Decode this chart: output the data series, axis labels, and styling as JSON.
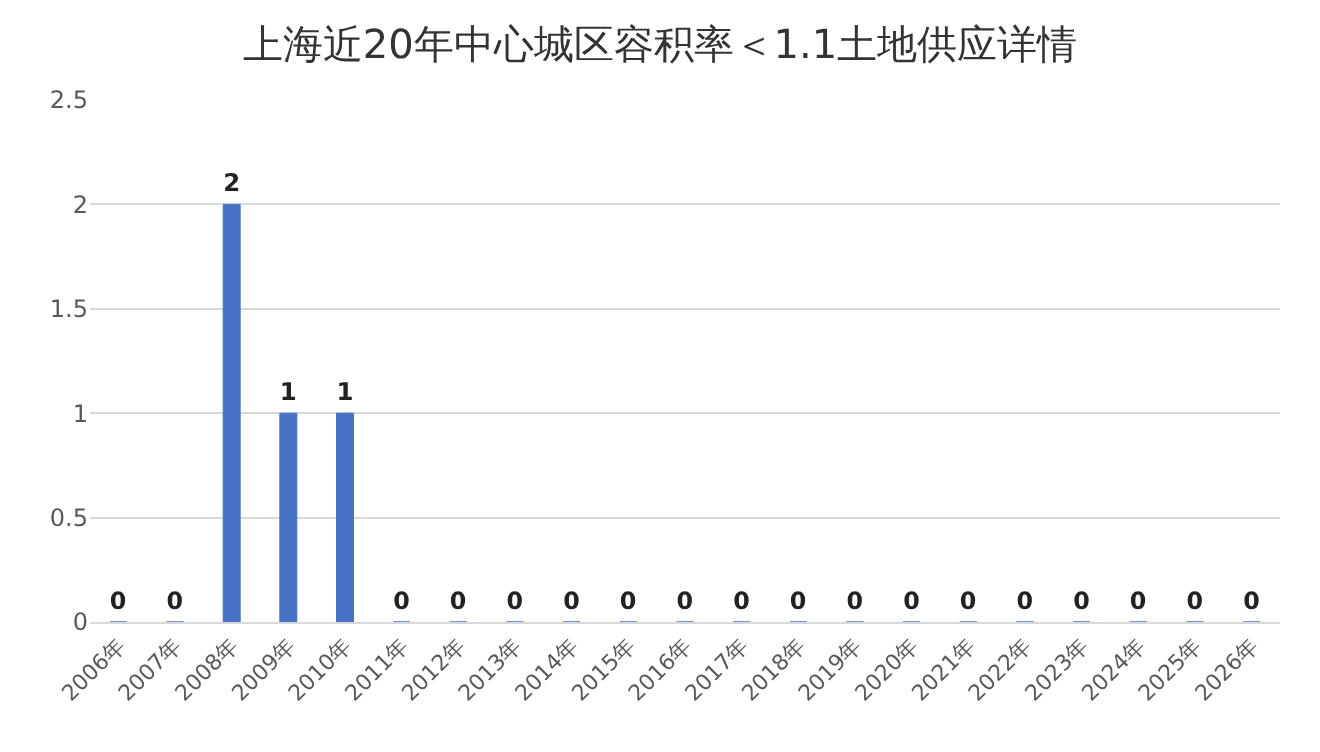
{
  "chart_data": {
    "type": "bar",
    "title": "上海近20年中心城区容积率＜1.1土地供应详情",
    "categories": [
      "2006年",
      "2007年",
      "2008年",
      "2009年",
      "2010年",
      "2011年",
      "2012年",
      "2013年",
      "2014年",
      "2015年",
      "2016年",
      "2017年",
      "2018年",
      "2019年",
      "2020年",
      "2021年",
      "2022年",
      "2023年",
      "2024年",
      "2025年",
      "2026年"
    ],
    "values": [
      0,
      0,
      2,
      1,
      1,
      0,
      0,
      0,
      0,
      0,
      0,
      0,
      0,
      0,
      0,
      0,
      0,
      0,
      0,
      0,
      0
    ],
    "color": "#4472c4",
    "ylim": [
      0,
      2.5
    ],
    "yticks": [
      0,
      0.5,
      1,
      1.5,
      2,
      2.5
    ],
    "grid": "y",
    "data_labels": true
  }
}
